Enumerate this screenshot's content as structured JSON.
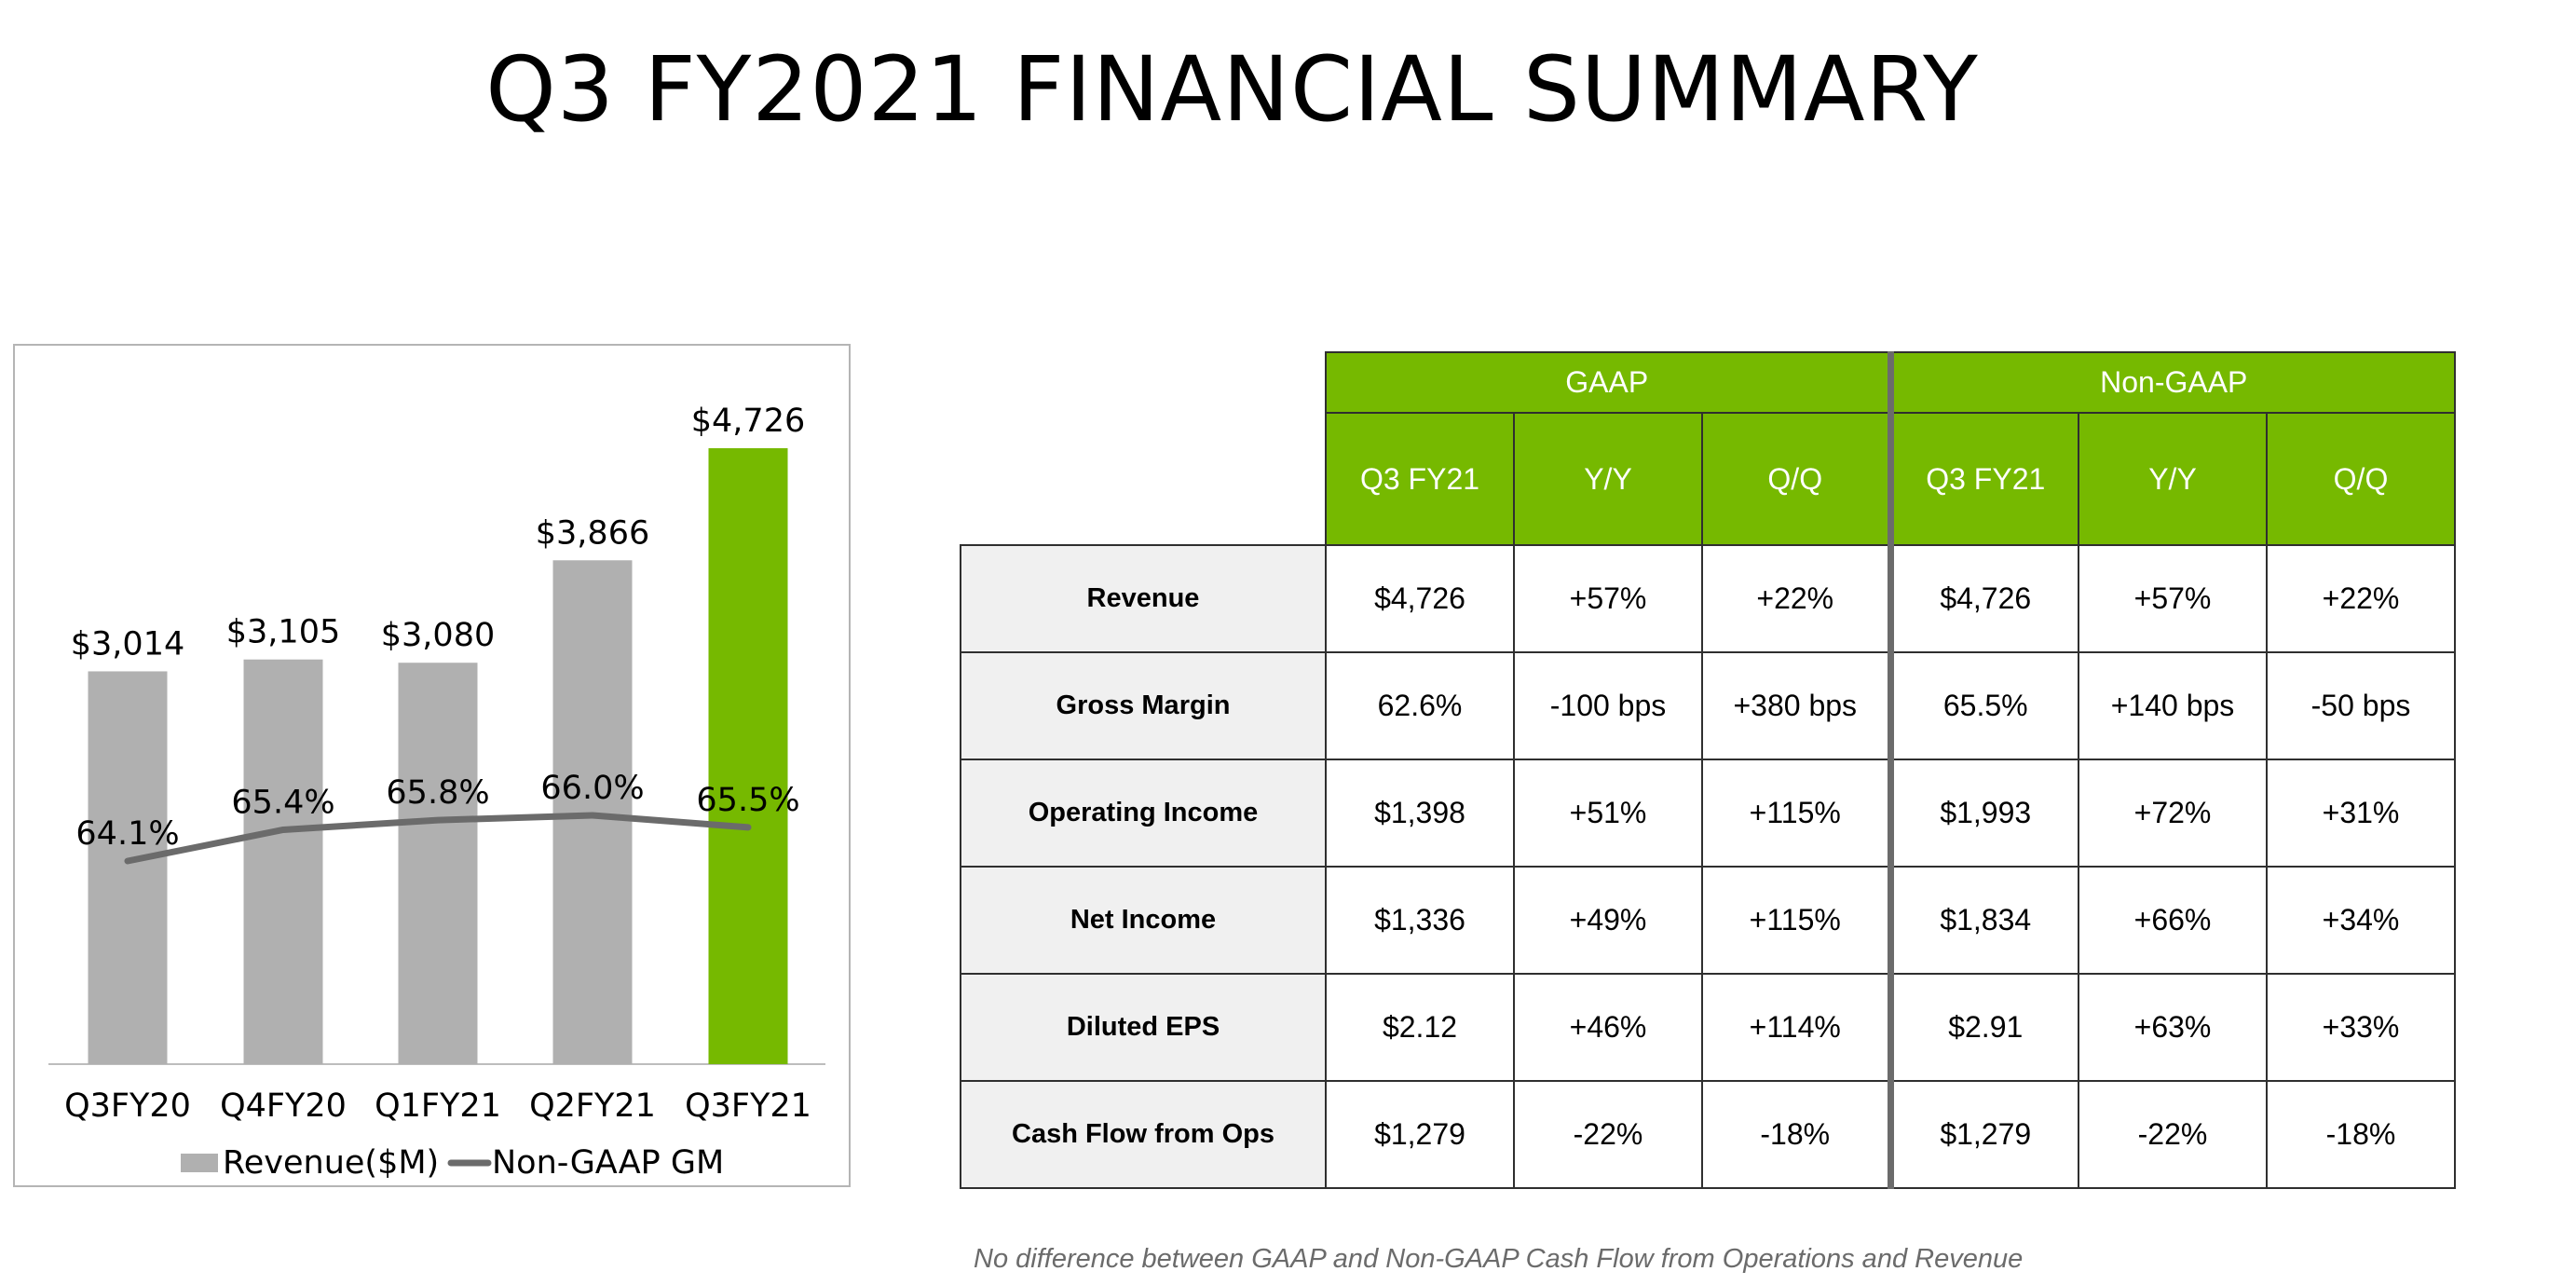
{
  "title": "Q3 FY2021 FINANCIAL SUMMARY",
  "colors": {
    "accent": "#76b900",
    "bar_gray": "#b0b0b0",
    "line": "#6b6b6b",
    "header_bg": "#76b900",
    "rowhead_bg": "#f0f0f0"
  },
  "chart_data": {
    "type": "bar",
    "categories": [
      "Q3FY20",
      "Q4FY20",
      "Q1FY21",
      "Q2FY21",
      "Q3FY21"
    ],
    "series": [
      {
        "name": "Revenue($M)",
        "kind": "bar",
        "values": [
          3014,
          3105,
          3080,
          3866,
          4726
        ],
        "labels": [
          "$3,014",
          "$3,105",
          "$3,080",
          "$3,866",
          "$4,726"
        ],
        "colors": [
          "#b0b0b0",
          "#b0b0b0",
          "#b0b0b0",
          "#b0b0b0",
          "#76b900"
        ]
      },
      {
        "name": "Non-GAAP GM",
        "kind": "line",
        "values": [
          64.1,
          65.4,
          65.8,
          66.0,
          65.5
        ],
        "labels": [
          "64.1%",
          "65.4%",
          "65.8%",
          "66.0%",
          "65.5%"
        ],
        "color": "#6b6b6b"
      }
    ],
    "legend": "bottom",
    "grid": false
  },
  "table": {
    "groups": [
      "GAAP",
      "Non-GAAP"
    ],
    "subheaders": [
      "Q3 FY21",
      "Y/Y",
      "Q/Q",
      "Q3 FY21",
      "Y/Y",
      "Q/Q"
    ],
    "rows": [
      {
        "label": "Revenue",
        "cells": [
          "$4,726",
          "+57%",
          "+22%",
          "$4,726",
          "+57%",
          "+22%"
        ]
      },
      {
        "label": "Gross Margin",
        "cells": [
          "62.6%",
          "-100 bps",
          "+380 bps",
          "65.5%",
          "+140 bps",
          "-50 bps"
        ]
      },
      {
        "label": "Operating Income",
        "cells": [
          "$1,398",
          "+51%",
          "+115%",
          "$1,993",
          "+72%",
          "+31%"
        ]
      },
      {
        "label": "Net Income",
        "cells": [
          "$1,336",
          "+49%",
          "+115%",
          "$1,834",
          "+66%",
          "+34%"
        ]
      },
      {
        "label": "Diluted EPS",
        "cells": [
          "$2.12",
          "+46%",
          "+114%",
          "$2.91",
          "+63%",
          "+33%"
        ]
      },
      {
        "label": "Cash Flow from Ops",
        "cells": [
          "$1,279",
          "-22%",
          "-18%",
          "$1,279",
          "-22%",
          "-18%"
        ]
      }
    ]
  },
  "footnote": "No difference between GAAP and Non-GAAP Cash Flow from Operations and Revenue"
}
